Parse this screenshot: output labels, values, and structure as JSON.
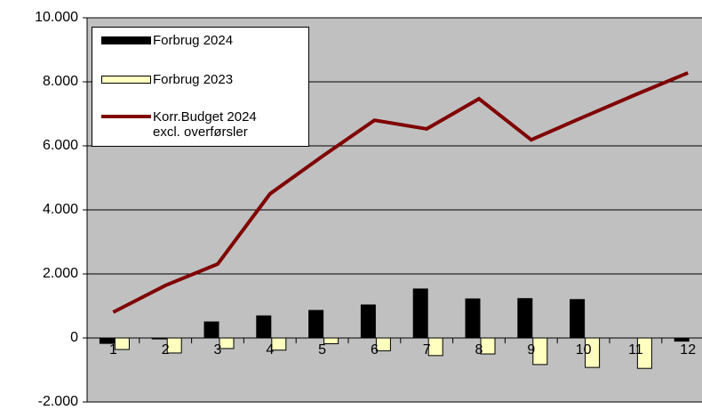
{
  "chart_data": {
    "type": "bar-line",
    "categories": [
      "1",
      "2",
      "3",
      "4",
      "5",
      "6",
      "7",
      "8",
      "9",
      "10",
      "11",
      "12"
    ],
    "series": [
      {
        "name": "Forbrug 2024",
        "type": "bar",
        "color": "#000000",
        "values": [
          -170,
          -30,
          500,
          690,
          860,
          1030,
          1530,
          1220,
          1230,
          1200,
          0,
          -100
        ]
      },
      {
        "name": "Forbrug 2023",
        "type": "bar",
        "color": "#ffffc0",
        "values": [
          -360,
          -470,
          -330,
          -380,
          -180,
          -400,
          -550,
          -500,
          -830,
          -920,
          -950,
          null
        ]
      },
      {
        "name": "Korr.Budget 2024\nexcl. overførsler",
        "type": "line",
        "color": "#800000",
        "values": [
          806,
          1640,
          2310,
          4500,
          5670,
          6800,
          6530,
          7470,
          6190,
          6900,
          7600,
          8280
        ]
      }
    ],
    "ylim": [
      -2000,
      10000
    ],
    "yticks": [
      {
        "value": -2000,
        "label": "-2.000"
      },
      0,
      {
        "value": 2000,
        "label": "2.000"
      },
      {
        "value": 4000,
        "label": "4.000"
      },
      {
        "value": 6000,
        "label": "6.000"
      },
      {
        "value": 8000,
        "label": "8.000"
      },
      {
        "value": 10000,
        "label": "10.000"
      }
    ],
    "grid": true,
    "legend": "top-left"
  }
}
